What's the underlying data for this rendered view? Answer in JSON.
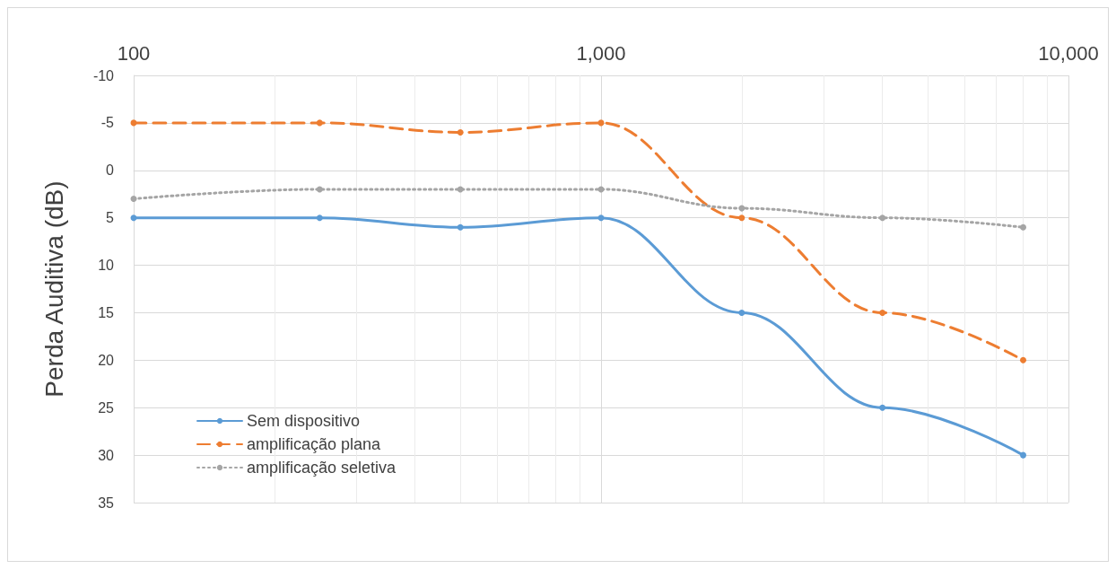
{
  "chart_data": {
    "type": "line",
    "ylabel": "Perda Auditiva (dB)",
    "log": "x",
    "xlim": [
      100,
      10000
    ],
    "xticks": [
      {
        "value": 100,
        "label": "100"
      },
      {
        "value": 1000,
        "label": "1,000"
      },
      {
        "value": 10000,
        "label": "10,000"
      }
    ],
    "ylim": [
      35,
      -10
    ],
    "yticks": [
      -10,
      -5,
      0,
      5,
      10,
      15,
      20,
      25,
      30,
      35
    ],
    "grid": true,
    "legend": "bottom left",
    "marker": "circle",
    "x": [
      100,
      250,
      500,
      1000,
      2000,
      4000,
      8000
    ],
    "series": [
      {
        "name": "Sem dispositivo",
        "color": "#5b9bd5",
        "line_style": "solid",
        "values": [
          5,
          5,
          6,
          5,
          15,
          25,
          30
        ]
      },
      {
        "name": "amplificação plana",
        "color": "#ed7d31",
        "line_style": "dashed",
        "values": [
          -5,
          -5,
          -4,
          -5,
          5,
          15,
          20
        ]
      },
      {
        "name": "amplificação seletiva",
        "color": "#a5a5a5",
        "line_style": "dotted",
        "values": [
          3,
          2,
          2,
          2,
          4,
          5,
          6
        ]
      }
    ]
  }
}
